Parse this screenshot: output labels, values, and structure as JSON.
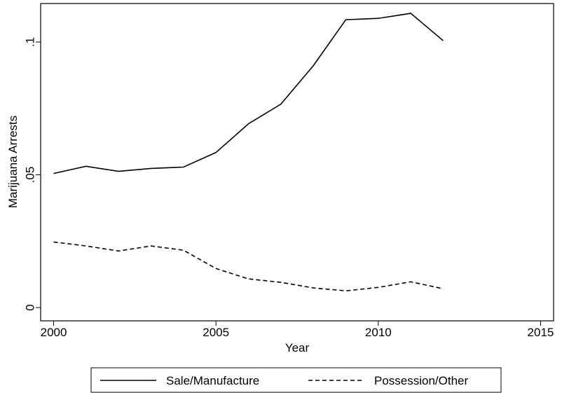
{
  "chart_data": {
    "type": "line",
    "x_label": "Year",
    "y_label": "Marijuana Arrests",
    "x": [
      2000,
      2001,
      2002,
      2003,
      2004,
      2005,
      2006,
      2007,
      2008,
      2009,
      2010,
      2011,
      2012
    ],
    "series": [
      {
        "name": "Sale/Manufacture",
        "color": "#000000",
        "dash": "solid",
        "values": [
          0.0505,
          0.0532,
          0.0513,
          0.0524,
          0.0529,
          0.0584,
          0.0692,
          0.0766,
          0.0911,
          0.1084,
          0.1089,
          0.1108,
          0.1005
        ]
      },
      {
        "name": "Possession/Other",
        "color": "#000000",
        "dash": "dashed",
        "values": [
          0.0247,
          0.0232,
          0.0213,
          0.0232,
          0.0216,
          0.0147,
          0.0108,
          0.0095,
          0.0074,
          0.0063,
          0.0076,
          0.0097,
          0.0071
        ]
      }
    ],
    "xlim": [
      1999.6,
      2015.4
    ],
    "xticks": [
      2000,
      2005,
      2010,
      2015
    ],
    "ylim": [
      -0.005,
      0.1145
    ],
    "yticks": [
      0,
      {
        "value": 0.05,
        "label": ".05"
      },
      {
        "value": 0.1,
        "label": ".1"
      }
    ],
    "grid": false,
    "legend": "bottom"
  }
}
